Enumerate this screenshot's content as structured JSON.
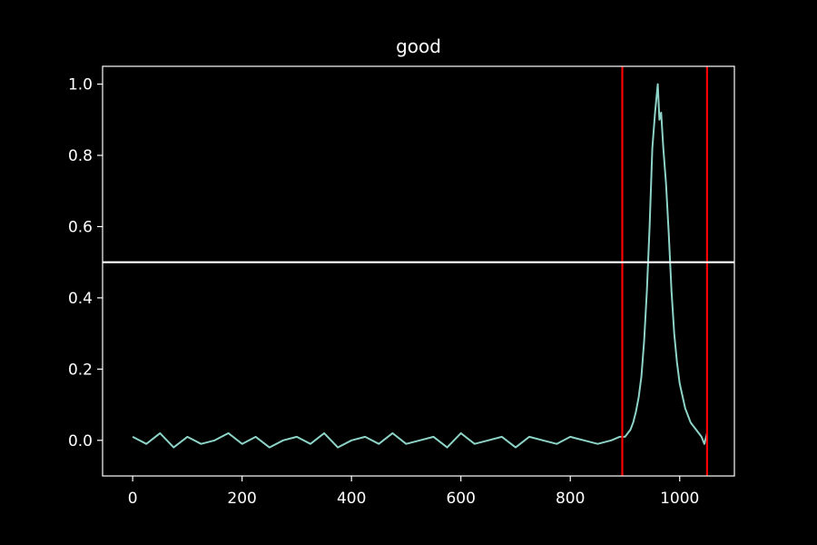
{
  "chart_data": {
    "type": "line",
    "title": "good",
    "xlabel": "",
    "ylabel": "",
    "xlim": [
      -55,
      1100
    ],
    "ylim": [
      -0.1,
      1.05
    ],
    "xticks": [
      0,
      200,
      400,
      600,
      800,
      1000
    ],
    "yticks": [
      0.0,
      0.2,
      0.4,
      0.6,
      0.8,
      1.0
    ],
    "xtick_labels": [
      "0",
      "200",
      "400",
      "600",
      "800",
      "1000"
    ],
    "ytick_labels": [
      "0.0",
      "0.2",
      "0.4",
      "0.6",
      "0.8",
      "1.0"
    ],
    "grid": false,
    "series": [
      {
        "color": "#8dd3c7",
        "x": [
          0,
          25,
          50,
          75,
          100,
          125,
          150,
          175,
          200,
          225,
          250,
          275,
          300,
          325,
          350,
          375,
          400,
          425,
          450,
          475,
          500,
          525,
          550,
          575,
          600,
          625,
          650,
          675,
          700,
          725,
          750,
          775,
          800,
          825,
          850,
          875,
          890,
          900,
          910,
          915,
          920,
          925,
          930,
          935,
          940,
          945,
          950,
          955,
          960,
          963,
          966,
          970,
          975,
          980,
          985,
          990,
          995,
          1000,
          1010,
          1020,
          1030,
          1040,
          1045,
          1050
        ],
        "y": [
          0.01,
          -0.01,
          0.02,
          -0.02,
          0.01,
          -0.01,
          0.0,
          0.02,
          -0.01,
          0.01,
          -0.02,
          0.0,
          0.01,
          -0.01,
          0.02,
          -0.02,
          0.0,
          0.01,
          -0.01,
          0.02,
          -0.01,
          0.0,
          0.01,
          -0.02,
          0.02,
          -0.01,
          0.0,
          0.01,
          -0.02,
          0.01,
          0.0,
          -0.01,
          0.01,
          0.0,
          -0.01,
          0.0,
          0.01,
          0.01,
          0.03,
          0.05,
          0.08,
          0.12,
          0.18,
          0.28,
          0.42,
          0.6,
          0.82,
          0.92,
          1.0,
          0.9,
          0.92,
          0.82,
          0.72,
          0.58,
          0.42,
          0.3,
          0.22,
          0.16,
          0.09,
          0.05,
          0.03,
          0.01,
          -0.01,
          0.02
        ]
      },
      {
        "color": "#ff0000",
        "x": [
          895,
          895
        ],
        "y": [
          -0.1,
          1.05
        ]
      },
      {
        "color": "#ff0000",
        "x": [
          1050,
          1050
        ],
        "y": [
          -0.1,
          1.05
        ]
      },
      {
        "color": "#ffffff",
        "x": [
          -55,
          1100
        ],
        "y": [
          0.5,
          0.5
        ]
      }
    ]
  }
}
